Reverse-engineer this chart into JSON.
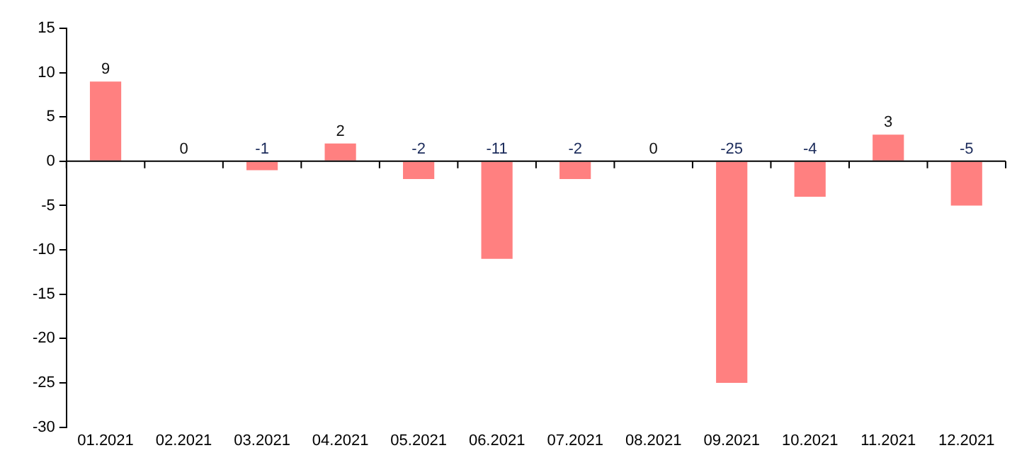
{
  "chart_data": {
    "type": "bar",
    "categories": [
      "01.2021",
      "02.2021",
      "03.2021",
      "04.2021",
      "05.2021",
      "06.2021",
      "07.2021",
      "08.2021",
      "09.2021",
      "10.2021",
      "11.2021",
      "12.2021"
    ],
    "values": [
      9,
      0,
      -1,
      2,
      -2,
      -11,
      -2,
      0,
      -25,
      -4,
      3,
      -5
    ],
    "color": "#ff8080",
    "ylim": [
      -30,
      15
    ],
    "yticks": [
      -30,
      -25,
      -20,
      -15,
      -10,
      -5,
      0,
      5,
      10,
      15
    ],
    "grid": false,
    "ref_lines": [
      {
        "axis": "y",
        "value": 0,
        "color": "#000000"
      }
    ],
    "legend": false,
    "data_labels": true
  }
}
